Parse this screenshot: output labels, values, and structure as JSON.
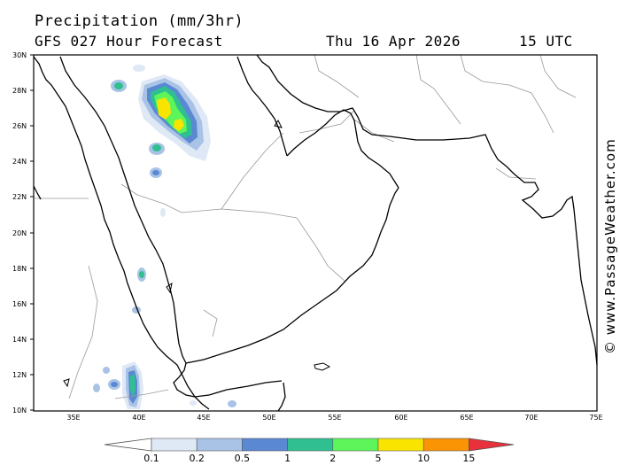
{
  "title": "Precipitation (mm/3hr)",
  "subtitle": "GFS 027 Hour Forecast",
  "date": "Thu 16 Apr 2026",
  "time": "15 UTC",
  "copyright": "© www.PassageWeather.com",
  "map": {
    "lat_ticks": [
      "30N",
      "28N",
      "26N",
      "24N",
      "22N",
      "20N",
      "18N",
      "16N",
      "14N",
      "12N",
      "10N"
    ],
    "lon_ticks": [
      "35E",
      "40E",
      "45E",
      "50E",
      "55E",
      "60E",
      "65E",
      "70E",
      "75E"
    ]
  },
  "legend": {
    "labels": [
      "0.1",
      "0.2",
      "0.5",
      "1",
      "2",
      "5",
      "10",
      "15"
    ],
    "colors": [
      "#ffffff",
      "#dfe8f5",
      "#a9c3e6",
      "#5b88d3",
      "#2fbf91",
      "#5df55a",
      "#f9e400",
      "#fb9404",
      "#e8313b"
    ]
  },
  "colors": {
    "coast": "#000000",
    "border": "#999999"
  }
}
